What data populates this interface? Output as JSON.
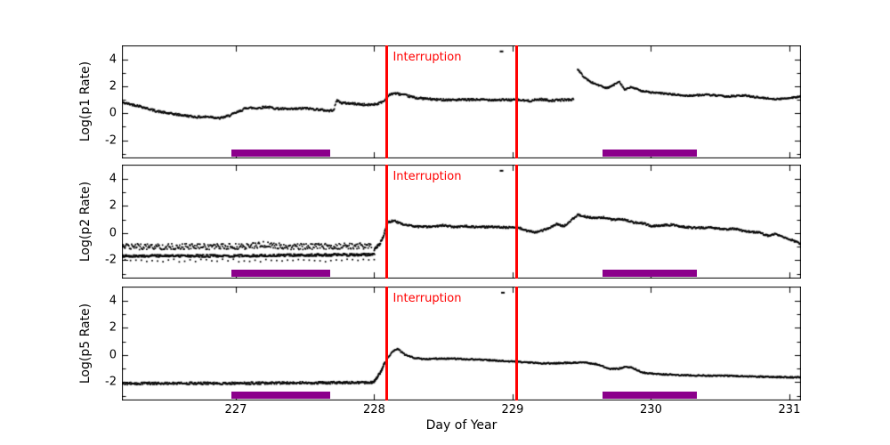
{
  "figure": {
    "background": "#ffffff"
  },
  "chart_data": {
    "type": "scatter",
    "title": "",
    "xlabel": "Day of Year",
    "marker_color": "#000000",
    "x_axis": {
      "min": 226.177,
      "max": 231.084,
      "tick_values": [
        227,
        228,
        229,
        230,
        231
      ],
      "tick_labels": [
        "227",
        "228",
        "229",
        "230",
        "231"
      ]
    },
    "y_axis": {
      "min": -3.35,
      "max": 5.05,
      "tick_values": [
        4,
        2,
        0,
        -2
      ],
      "tick_labels": [
        "4",
        "2",
        "0",
        "-2"
      ],
      "minor_tick_values": [
        3,
        1,
        -1,
        -3
      ]
    },
    "grid": "off",
    "interruption": {
      "label": "Interruption",
      "color": "#ff0000",
      "days": [
        228.09,
        229.03
      ],
      "label_day": 228.135
    },
    "bars": {
      "color": "#8B008B",
      "y_center": -2.93,
      "ranges_days": [
        [
          226.97,
          227.68
        ],
        [
          229.65,
          230.33
        ]
      ]
    },
    "panels": [
      {
        "id": "p1",
        "ylabel": "Log(p1 Rate)",
        "outlier": [
          228.92,
          4.6
        ],
        "segments": [
          {
            "noise": 0.08,
            "pts_per_day": 250,
            "keypoints": [
              [
                226.18,
                0.8
              ],
              [
                226.3,
                0.55
              ],
              [
                226.42,
                0.18
              ],
              [
                226.5,
                0.02
              ],
              [
                226.6,
                -0.12
              ],
              [
                226.72,
                -0.28
              ],
              [
                226.82,
                -0.25
              ],
              [
                226.88,
                -0.38
              ],
              [
                226.95,
                -0.18
              ],
              [
                227.02,
                0.12
              ],
              [
                227.08,
                0.42
              ],
              [
                227.15,
                0.38
              ],
              [
                227.22,
                0.48
              ],
              [
                227.3,
                0.35
              ],
              [
                227.4,
                0.3
              ],
              [
                227.5,
                0.38
              ],
              [
                227.6,
                0.28
              ],
              [
                227.68,
                0.18
              ],
              [
                227.71,
                0.3
              ],
              [
                227.73,
                1.0
              ],
              [
                227.76,
                0.78
              ],
              [
                227.85,
                0.72
              ],
              [
                227.95,
                0.62
              ],
              [
                228.02,
                0.7
              ],
              [
                228.07,
                0.9
              ],
              [
                228.1,
                1.3
              ],
              [
                228.14,
                1.5
              ],
              [
                228.2,
                1.4
              ],
              [
                228.3,
                1.15
              ],
              [
                228.45,
                1.02
              ],
              [
                228.6,
                1.0
              ],
              [
                228.75,
                1.02
              ],
              [
                228.9,
                1.0
              ],
              [
                229.03,
                1.0
              ],
              [
                229.12,
                0.92
              ],
              [
                229.2,
                1.05
              ],
              [
                229.28,
                0.95
              ],
              [
                229.36,
                1.0
              ],
              [
                229.44,
                1.03
              ]
            ]
          },
          {
            "noise": 0.06,
            "pts_per_day": 250,
            "keypoints": [
              [
                229.47,
                3.3
              ],
              [
                229.51,
                2.75
              ],
              [
                229.56,
                2.35
              ],
              [
                229.62,
                2.1
              ],
              [
                229.68,
                1.85
              ],
              [
                229.73,
                2.1
              ],
              [
                229.77,
                2.4
              ],
              [
                229.81,
                1.75
              ],
              [
                229.86,
                1.95
              ],
              [
                229.92,
                1.7
              ],
              [
                230.0,
                1.55
              ],
              [
                230.12,
                1.45
              ],
              [
                230.25,
                1.3
              ],
              [
                230.4,
                1.38
              ],
              [
                230.55,
                1.25
              ],
              [
                230.68,
                1.32
              ],
              [
                230.8,
                1.15
              ],
              [
                230.92,
                1.05
              ],
              [
                231.0,
                1.15
              ],
              [
                231.08,
                1.25
              ]
            ]
          }
        ]
      },
      {
        "id": "p2",
        "ylabel": "Log(p2 Rate)",
        "outlier": [
          228.92,
          4.6
        ],
        "segments": [
          {
            "noise": 0.22,
            "pts_per_day": 210,
            "keypoints": [
              [
                226.18,
                -1.0
              ],
              [
                227.05,
                -1.0
              ],
              [
                227.2,
                -0.85
              ],
              [
                227.35,
                -1.0
              ],
              [
                227.98,
                -0.95
              ]
            ]
          },
          {
            "noise": 0.09,
            "pts_per_day": 190,
            "marker_w": 2.6,
            "keypoints": [
              [
                226.18,
                -1.68
              ],
              [
                227.0,
                -1.68
              ],
              [
                227.5,
                -1.62
              ],
              [
                228.0,
                -1.58
              ]
            ]
          },
          {
            "noise": 0.1,
            "pts_per_day": 25,
            "keypoints": [
              [
                226.2,
                -2.02
              ],
              [
                228.0,
                -2.02
              ]
            ]
          },
          {
            "noise": 0.1,
            "pts_per_day": 500,
            "keypoints": [
              [
                228.0,
                -1.2
              ],
              [
                228.04,
                -0.8
              ],
              [
                228.07,
                -0.1
              ],
              [
                228.09,
                0.55
              ]
            ]
          },
          {
            "noise": 0.07,
            "pts_per_day": 250,
            "keypoints": [
              [
                228.1,
                0.8
              ],
              [
                228.14,
                0.92
              ],
              [
                228.2,
                0.68
              ],
              [
                228.3,
                0.48
              ],
              [
                228.42,
                0.46
              ],
              [
                228.5,
                0.58
              ],
              [
                228.57,
                0.45
              ],
              [
                228.65,
                0.52
              ],
              [
                228.75,
                0.44
              ],
              [
                228.85,
                0.46
              ],
              [
                228.95,
                0.42
              ],
              [
                229.03,
                0.46
              ],
              [
                229.1,
                0.18
              ],
              [
                229.17,
                0.05
              ],
              [
                229.25,
                0.32
              ],
              [
                229.32,
                0.68
              ],
              [
                229.37,
                0.5
              ],
              [
                229.42,
                0.9
              ],
              [
                229.47,
                1.35
              ],
              [
                229.53,
                1.2
              ],
              [
                229.6,
                1.1
              ],
              [
                229.66,
                1.15
              ],
              [
                229.72,
                1.0
              ],
              [
                229.8,
                1.02
              ],
              [
                229.87,
                0.8
              ],
              [
                229.95,
                0.72
              ],
              [
                230.0,
                0.52
              ],
              [
                230.08,
                0.56
              ],
              [
                230.15,
                0.62
              ],
              [
                230.22,
                0.48
              ],
              [
                230.32,
                0.38
              ],
              [
                230.42,
                0.42
              ],
              [
                230.52,
                0.28
              ],
              [
                230.6,
                0.32
              ],
              [
                230.7,
                0.12
              ],
              [
                230.78,
                0.05
              ],
              [
                230.84,
                -0.18
              ],
              [
                230.9,
                -0.08
              ],
              [
                230.97,
                -0.35
              ],
              [
                231.03,
                -0.55
              ],
              [
                231.08,
                -0.8
              ]
            ]
          }
        ]
      },
      {
        "id": "p5",
        "ylabel": "Log(p5 Rate)",
        "outlier": [
          228.93,
          4.6
        ],
        "segments": [
          {
            "noise": 0.09,
            "pts_per_day": 280,
            "keypoints": [
              [
                226.18,
                -2.1
              ],
              [
                227.0,
                -2.08
              ],
              [
                227.5,
                -2.05
              ],
              [
                228.0,
                -2.02
              ]
            ]
          },
          {
            "noise": 0.08,
            "pts_per_day": 500,
            "keypoints": [
              [
                228.0,
                -1.95
              ],
              [
                228.05,
                -1.2
              ],
              [
                228.08,
                -0.45
              ]
            ]
          },
          {
            "noise": 0.05,
            "pts_per_day": 250,
            "keypoints": [
              [
                228.1,
                -0.15
              ],
              [
                228.14,
                0.3
              ],
              [
                228.17,
                0.45
              ],
              [
                228.22,
                0.05
              ],
              [
                228.28,
                -0.18
              ],
              [
                228.35,
                -0.3
              ],
              [
                228.45,
                -0.27
              ],
              [
                228.55,
                -0.25
              ],
              [
                228.65,
                -0.3
              ],
              [
                228.78,
                -0.35
              ],
              [
                228.9,
                -0.42
              ],
              [
                229.03,
                -0.5
              ],
              [
                229.12,
                -0.55
              ],
              [
                229.22,
                -0.62
              ],
              [
                229.32,
                -0.6
              ],
              [
                229.42,
                -0.58
              ],
              [
                229.52,
                -0.55
              ],
              [
                229.62,
                -0.7
              ],
              [
                229.7,
                -1.02
              ],
              [
                229.77,
                -1.0
              ],
              [
                229.82,
                -0.85
              ],
              [
                229.87,
                -0.95
              ],
              [
                229.94,
                -1.3
              ],
              [
                230.05,
                -1.4
              ],
              [
                230.25,
                -1.5
              ],
              [
                230.5,
                -1.52
              ],
              [
                230.8,
                -1.6
              ],
              [
                231.08,
                -1.65
              ]
            ]
          }
        ]
      }
    ]
  }
}
